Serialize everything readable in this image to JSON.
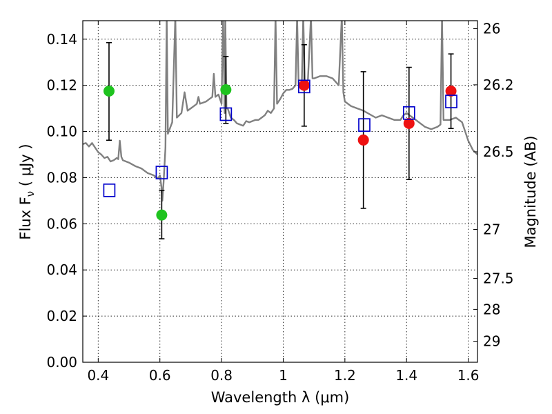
{
  "chart_data": {
    "type": "scatter",
    "xlabel": "Wavelength  λ (μm)",
    "ylabel": "Flux  F",
    "ylabel_sub": "ν",
    "ylabel_unit": "  ( μJy )",
    "y2label": "Magnitude (AB)",
    "xlim": [
      0.35,
      1.63
    ],
    "ylim": [
      0.0,
      0.148
    ],
    "grid": true,
    "x_ticks": [
      0.4,
      0.6,
      0.8,
      1.0,
      1.2,
      1.4,
      1.6
    ],
    "x_tick_labels": [
      "0.4",
      "0.6",
      "0.8",
      "1",
      "1.2",
      "1.4",
      "1.6"
    ],
    "y_ticks": [
      0.0,
      0.02,
      0.04,
      0.06,
      0.08,
      0.1,
      0.12,
      0.14
    ],
    "y_tick_labels": [
      "0.00",
      "0.02",
      "0.04",
      "0.06",
      "0.08",
      "0.10",
      "0.12",
      "0.14"
    ],
    "mag_ticks": [
      26,
      26.2,
      26.5,
      27,
      27.5,
      28,
      29
    ],
    "mag_tick_labels": [
      "26",
      "26.2",
      "26.5",
      "27",
      "27.5",
      "28",
      "29"
    ],
    "colors": {
      "green": "#1fc31f",
      "red": "#ee1111",
      "model_box": "#0000cc",
      "sed": "#808080",
      "errorbar": "#000000"
    },
    "series": [
      {
        "marker": "circle-green",
        "points": [
          {
            "x": 0.435,
            "y": 0.1175,
            "yerr_low": 0.0962,
            "yerr_high": 0.1385
          },
          {
            "x": 0.606,
            "y": 0.0638,
            "yerr_low": 0.0535,
            "yerr_high": 0.0745
          },
          {
            "x": 0.814,
            "y": 0.1181,
            "yerr_low": 0.1035,
            "yerr_high": 0.1325
          }
        ]
      },
      {
        "marker": "circle-red",
        "points": [
          {
            "x": 1.068,
            "y": 0.12,
            "yerr_low": 0.1023,
            "yerr_high": 0.1376
          },
          {
            "x": 1.26,
            "y": 0.0963,
            "yerr_low": 0.0667,
            "yerr_high": 0.1259
          },
          {
            "x": 1.408,
            "y": 0.1035,
            "yerr_low": 0.0792,
            "yerr_high": 0.1278
          },
          {
            "x": 1.544,
            "y": 0.1175,
            "yerr_low": 0.1013,
            "yerr_high": 0.1336
          }
        ]
      },
      {
        "marker": "square-blue-open",
        "points": [
          {
            "x": 0.436,
            "y": 0.0745
          },
          {
            "x": 0.606,
            "y": 0.0822
          },
          {
            "x": 0.814,
            "y": 0.1075
          },
          {
            "x": 1.068,
            "y": 0.1195
          },
          {
            "x": 1.263,
            "y": 0.1028
          },
          {
            "x": 1.408,
            "y": 0.108
          },
          {
            "x": 1.545,
            "y": 0.113
          }
        ]
      }
    ],
    "sed_curve": [
      [
        0.35,
        0.0945
      ],
      [
        0.36,
        0.095
      ],
      [
        0.37,
        0.0935
      ],
      [
        0.38,
        0.095
      ],
      [
        0.39,
        0.093
      ],
      [
        0.4,
        0.091
      ],
      [
        0.41,
        0.09
      ],
      [
        0.42,
        0.0885
      ],
      [
        0.43,
        0.089
      ],
      [
        0.44,
        0.087
      ],
      [
        0.45,
        0.0875
      ],
      [
        0.46,
        0.0885
      ],
      [
        0.465,
        0.088
      ],
      [
        0.47,
        0.096
      ],
      [
        0.475,
        0.089
      ],
      [
        0.48,
        0.0875
      ],
      [
        0.5,
        0.0865
      ],
      [
        0.52,
        0.085
      ],
      [
        0.54,
        0.084
      ],
      [
        0.56,
        0.082
      ],
      [
        0.58,
        0.081
      ],
      [
        0.59,
        0.08
      ],
      [
        0.595,
        0.0798
      ],
      [
        0.6,
        0.081
      ],
      [
        0.605,
        0.076
      ],
      [
        0.608,
        0.07
      ],
      [
        0.612,
        0.078
      ],
      [
        0.618,
        0.093
      ],
      [
        0.622,
        0.15
      ],
      [
        0.626,
        0.099
      ],
      [
        0.64,
        0.104
      ],
      [
        0.65,
        0.15
      ],
      [
        0.655,
        0.106
      ],
      [
        0.67,
        0.108
      ],
      [
        0.68,
        0.117
      ],
      [
        0.69,
        0.109
      ],
      [
        0.7,
        0.11
      ],
      [
        0.71,
        0.111
      ],
      [
        0.72,
        0.112
      ],
      [
        0.725,
        0.115
      ],
      [
        0.73,
        0.112
      ],
      [
        0.75,
        0.113
      ],
      [
        0.76,
        0.114
      ],
      [
        0.77,
        0.115
      ],
      [
        0.775,
        0.125
      ],
      [
        0.78,
        0.115
      ],
      [
        0.79,
        0.116
      ],
      [
        0.8,
        0.112
      ],
      [
        0.805,
        0.15
      ],
      [
        0.81,
        0.108
      ],
      [
        0.812,
        0.15
      ],
      [
        0.816,
        0.11
      ],
      [
        0.82,
        0.11
      ],
      [
        0.83,
        0.106
      ],
      [
        0.84,
        0.105
      ],
      [
        0.85,
        0.1035
      ],
      [
        0.86,
        0.103
      ],
      [
        0.87,
        0.1025
      ],
      [
        0.88,
        0.1045
      ],
      [
        0.89,
        0.104
      ],
      [
        0.9,
        0.1045
      ],
      [
        0.91,
        0.105
      ],
      [
        0.92,
        0.105
      ],
      [
        0.93,
        0.106
      ],
      [
        0.94,
        0.107
      ],
      [
        0.95,
        0.109
      ],
      [
        0.96,
        0.108
      ],
      [
        0.97,
        0.11
      ],
      [
        0.975,
        0.15
      ],
      [
        0.98,
        0.112
      ],
      [
        0.99,
        0.114
      ],
      [
        1.0,
        0.1165
      ],
      [
        1.01,
        0.118
      ],
      [
        1.02,
        0.118
      ],
      [
        1.03,
        0.1185
      ],
      [
        1.04,
        0.12
      ],
      [
        1.045,
        0.15
      ],
      [
        1.05,
        0.12
      ],
      [
        1.06,
        0.119
      ],
      [
        1.065,
        0.15
      ],
      [
        1.07,
        0.121
      ],
      [
        1.08,
        0.122
      ],
      [
        1.09,
        0.15
      ],
      [
        1.095,
        0.123
      ],
      [
        1.1,
        0.123
      ],
      [
        1.12,
        0.124
      ],
      [
        1.14,
        0.124
      ],
      [
        1.16,
        0.123
      ],
      [
        1.18,
        0.12
      ],
      [
        1.19,
        0.15
      ],
      [
        1.195,
        0.117
      ],
      [
        1.2,
        0.113
      ],
      [
        1.22,
        0.111
      ],
      [
        1.24,
        0.11
      ],
      [
        1.26,
        0.109
      ],
      [
        1.28,
        0.1075
      ],
      [
        1.3,
        0.106
      ],
      [
        1.32,
        0.107
      ],
      [
        1.34,
        0.106
      ],
      [
        1.36,
        0.105
      ],
      [
        1.38,
        0.105
      ],
      [
        1.39,
        0.107
      ],
      [
        1.4,
        0.108
      ],
      [
        1.42,
        0.106
      ],
      [
        1.44,
        0.104
      ],
      [
        1.46,
        0.102
      ],
      [
        1.48,
        0.101
      ],
      [
        1.5,
        0.102
      ],
      [
        1.51,
        0.103
      ],
      [
        1.515,
        0.15
      ],
      [
        1.52,
        0.105
      ],
      [
        1.54,
        0.105
      ],
      [
        1.56,
        0.106
      ],
      [
        1.58,
        0.104
      ],
      [
        1.6,
        0.096
      ],
      [
        1.615,
        0.092
      ],
      [
        1.63,
        0.09
      ]
    ]
  }
}
